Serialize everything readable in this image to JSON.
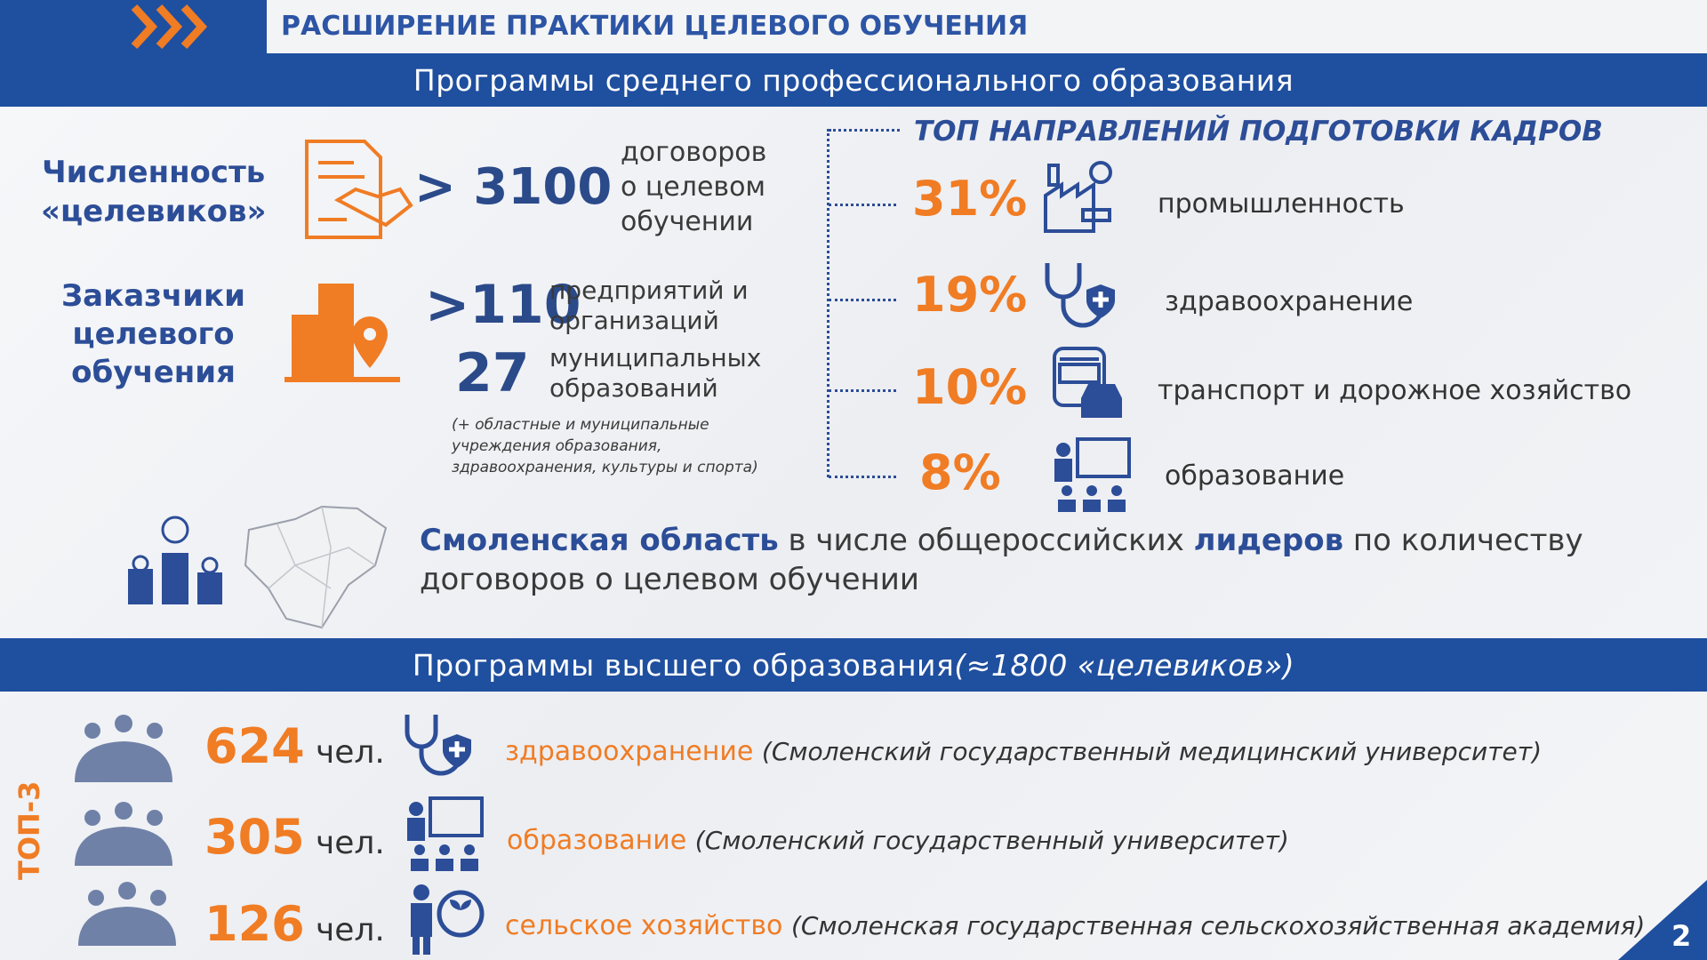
{
  "header": {
    "title": "РАСШИРЕНИЕ ПРАКТИКИ ЦЕЛЕВОГО ОБУЧЕНИЯ"
  },
  "spo": {
    "title": "Программы среднего профессионального образования",
    "targeted": {
      "label": [
        "Численность",
        "«целевиков»"
      ],
      "value": "> 3100",
      "text": [
        "договоров",
        "о целевом",
        "обучении"
      ]
    },
    "customers": {
      "label": [
        "Заказчики",
        "целевого",
        "обучения"
      ],
      "items": [
        {
          "value": ">110",
          "text": [
            "предприятий и",
            "организаций"
          ]
        },
        {
          "value": "27",
          "text": [
            "муниципальных",
            "образований"
          ]
        }
      ],
      "note": [
        "(+ областные и муниципальные",
        "учреждения образования,",
        "здравоохранения, культуры и спорта)"
      ]
    },
    "top_directions": {
      "title": "ТОП НАПРАВЛЕНИЙ ПОДГОТОВКИ КАДРОВ",
      "items": [
        {
          "percent": "31%",
          "label": "промышленность"
        },
        {
          "percent": "19%",
          "label": "здравоохранение"
        },
        {
          "percent": "10%",
          "label": "транспорт и дорожное хозяйство"
        },
        {
          "percent": "8%",
          "label": "образование"
        }
      ]
    },
    "leader": {
      "highlight1": "Смоленская область",
      "text1": "в числе общероссийских",
      "highlight2": "лидеров",
      "text2": "по количеству договоров о целевом обучении"
    }
  },
  "vo": {
    "title": "Программы высшего образования",
    "title_note": "(≈1800 «целевиков»)",
    "badge": "ТОП-3",
    "rows": [
      {
        "count": "624",
        "unit": "чел.",
        "field": "здравоохранение",
        "institution": "(Смоленский государственный медицинский университет)"
      },
      {
        "count": "305",
        "unit": "чел.",
        "field": "образование",
        "institution": "(Смоленский государственный университет)"
      },
      {
        "count": "126",
        "unit": "чел.",
        "field": "сельское хозяйство",
        "institution": "(Смоленская государственная сельскохозяйственная академия)"
      }
    ]
  },
  "page_number": "2"
}
